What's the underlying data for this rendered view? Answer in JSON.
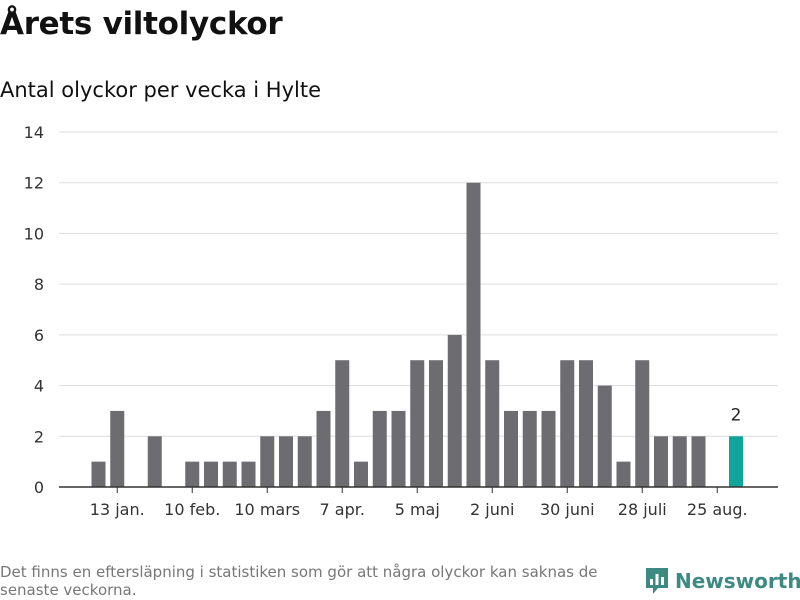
{
  "title": "Årets viltolyckor",
  "subtitle": "Antal olyckor per vecka i Hylte",
  "footnote": "Det finns en eftersläpning i statistiken som gör att några olyckor kan saknas de senaste veckorna.",
  "brand": {
    "name": "Newsworthy",
    "icon": "newsworthy-logo-icon",
    "color": "#3d8a83"
  },
  "chart_data": {
    "type": "bar",
    "title": "Antal olyckor per vecka i Hylte",
    "xlabel": "",
    "ylabel": "",
    "ylim": [
      0,
      14
    ],
    "yticks": [
      0,
      2,
      4,
      6,
      8,
      10,
      12,
      14
    ],
    "grid": true,
    "legend": "none",
    "x_tick_labels": [
      {
        "week": 2,
        "label": "13 jan."
      },
      {
        "week": 6,
        "label": "10 feb."
      },
      {
        "week": 10,
        "label": "10 mars"
      },
      {
        "week": 14,
        "label": "7 apr."
      },
      {
        "week": 18,
        "label": "5 maj"
      },
      {
        "week": 22,
        "label": "2 juni"
      },
      {
        "week": 26,
        "label": "30 juni"
      },
      {
        "week": 30,
        "label": "28 juli"
      },
      {
        "week": 34,
        "label": "25 aug."
      }
    ],
    "weeks": [
      1,
      2,
      3,
      4,
      5,
      6,
      7,
      8,
      9,
      10,
      11,
      12,
      13,
      14,
      15,
      16,
      17,
      18,
      19,
      20,
      21,
      22,
      23,
      24,
      25,
      26,
      27,
      28,
      29,
      30,
      31,
      32,
      33,
      34,
      35
    ],
    "values": [
      1,
      3,
      0,
      2,
      0,
      1,
      1,
      1,
      1,
      2,
      2,
      2,
      3,
      5,
      1,
      3,
      3,
      5,
      5,
      6,
      12,
      5,
      3,
      3,
      3,
      5,
      5,
      4,
      1,
      5,
      2,
      2,
      2,
      0,
      2
    ],
    "highlight": {
      "week": 35,
      "value": 2,
      "label": "2"
    },
    "colors": {
      "bar": "#6d6c71",
      "highlight": "#11a49a",
      "grid": "#dddddd",
      "axis": "#333333"
    }
  }
}
